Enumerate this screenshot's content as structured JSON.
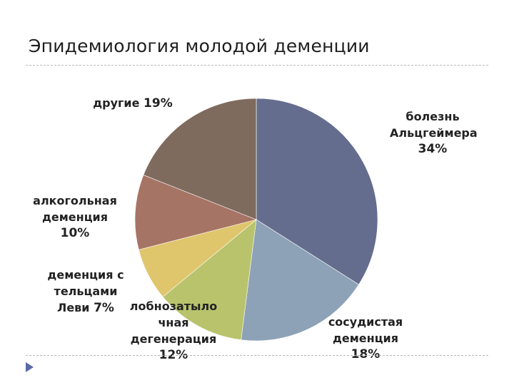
{
  "slide": {
    "title": "Эпидемиология молодой деменции"
  },
  "colors": {
    "alzheimer": "#656d8e",
    "vascular": "#8da2b6",
    "frontotemporal": "#b9c36c",
    "lewy": "#dfc56c",
    "alcohol": "#a67464",
    "other": "#7f6a5e"
  },
  "chart_data": {
    "type": "pie",
    "title": "",
    "slices": [
      {
        "key": "alzheimer",
        "lines": [
          "болезнь",
          "Альцгеймера"
        ],
        "pct": "34%",
        "value": 34
      },
      {
        "key": "vascular",
        "lines": [
          "сосудистая",
          "деменция"
        ],
        "pct": "18%",
        "value": 18
      },
      {
        "key": "frontotemporal",
        "lines": [
          "лобнозатыло",
          "чная",
          "дегенерация"
        ],
        "pct": "12%",
        "value": 12
      },
      {
        "key": "lewy",
        "lines": [
          "деменция с",
          "тельцами",
          "Леви"
        ],
        "pct": "7%",
        "value": 7
      },
      {
        "key": "alcohol",
        "lines": [
          "алкогольная",
          "деменция"
        ],
        "pct": "10%",
        "value": 10
      },
      {
        "key": "other",
        "lines": [
          "другие"
        ],
        "pct": "19%",
        "value": 19
      }
    ]
  }
}
